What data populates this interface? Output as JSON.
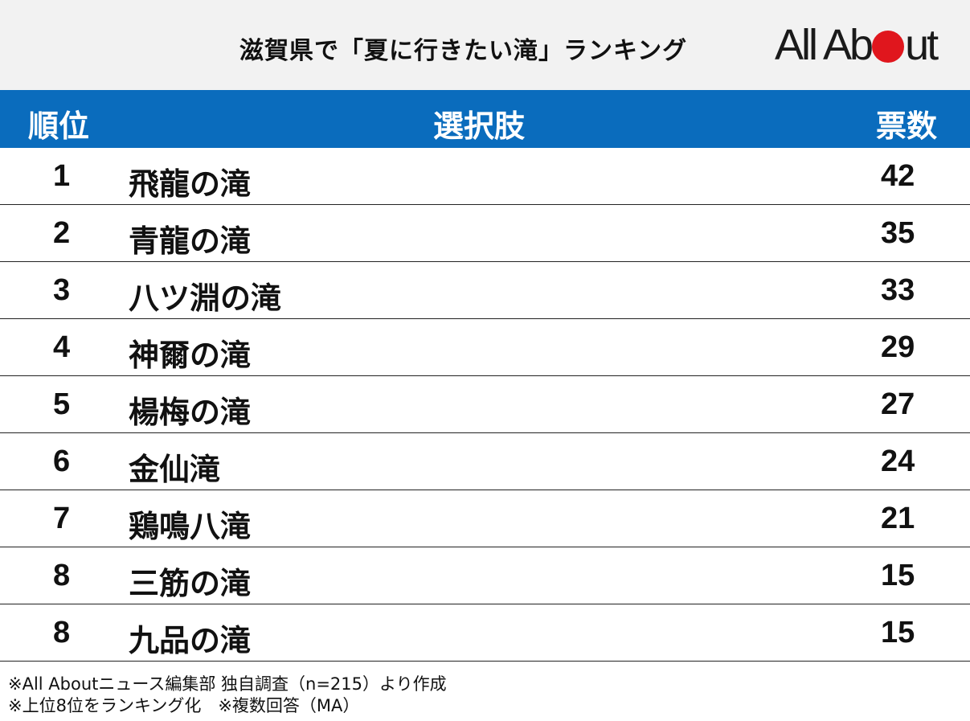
{
  "header": {
    "title": "滋賀県で「夏に行きたい滝」ランキング",
    "logo_text_before": "All Ab",
    "logo_text_after": "ut"
  },
  "table": {
    "col_rank": "順位",
    "col_choice": "選択肢",
    "col_votes": "票数"
  },
  "chart_data": {
    "type": "table",
    "title": "滋賀県で「夏に行きたい滝」ランキング",
    "columns": [
      "順位",
      "選択肢",
      "票数"
    ],
    "rows": [
      {
        "rank": "1",
        "name": "飛龍の滝",
        "votes": "42"
      },
      {
        "rank": "2",
        "name": "青龍の滝",
        "votes": "35"
      },
      {
        "rank": "3",
        "name": "八ツ淵の滝",
        "votes": "33"
      },
      {
        "rank": "4",
        "name": "神爾の滝",
        "votes": "29"
      },
      {
        "rank": "5",
        "name": "楊梅の滝",
        "votes": "27"
      },
      {
        "rank": "6",
        "name": "金仙滝",
        "votes": "24"
      },
      {
        "rank": "7",
        "name": "鶏鳴八滝",
        "votes": "21"
      },
      {
        "rank": "8",
        "name": "三筋の滝",
        "votes": "15"
      },
      {
        "rank": "8",
        "name": "九品の滝",
        "votes": "15"
      }
    ]
  },
  "notes": [
    "※All Aboutニュース編集部 独自調査（n=215）より作成",
    "※上位8位をランキング化　※複数回答（MA）"
  ],
  "colors": {
    "header_bg": "#f2f2f2",
    "table_head_bg": "#0a6cbd",
    "logo_dot": "#e0161d"
  }
}
